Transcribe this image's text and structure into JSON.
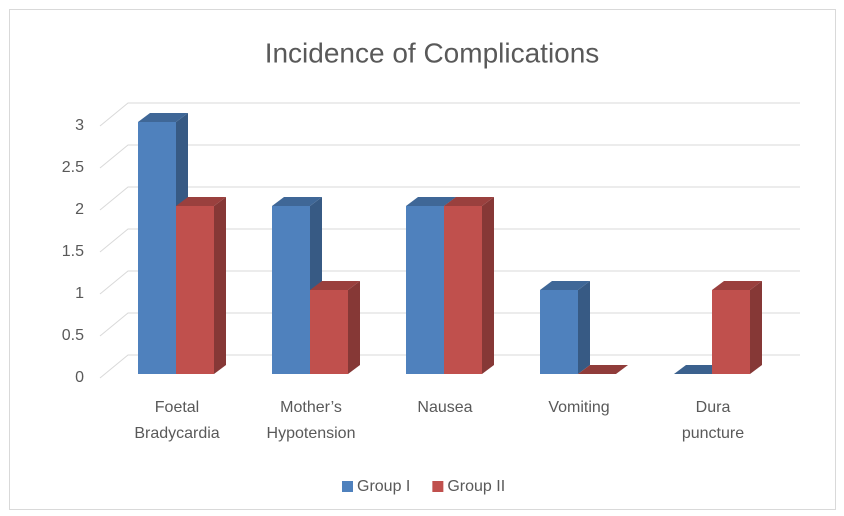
{
  "chart_data": {
    "type": "bar3d",
    "title": "Incidence of Complications",
    "categories": [
      "Foetal Bradycardia",
      "Mother’s Hypotension",
      "Nausea",
      "Vomiting",
      "Dura puncture"
    ],
    "series": [
      {
        "name": "Group I",
        "color": "#4f81bd",
        "values": [
          3,
          2,
          2,
          1,
          0
        ]
      },
      {
        "name": "Group II",
        "color": "#c0504d",
        "values": [
          2,
          1,
          2,
          0,
          1
        ]
      }
    ],
    "ylim": [
      0,
      3
    ],
    "yticks": [
      0,
      0.5,
      1,
      1.5,
      2,
      2.5,
      3
    ],
    "grid": true,
    "legend": "bottom"
  }
}
